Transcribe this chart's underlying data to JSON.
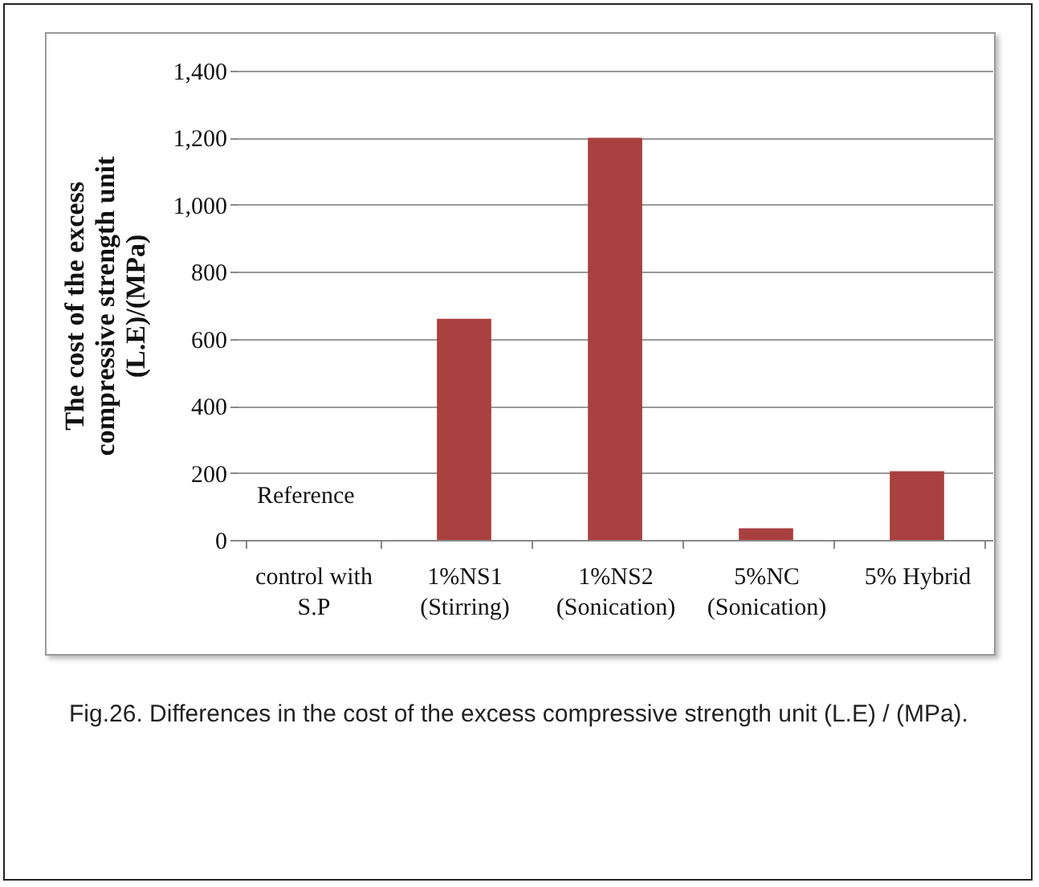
{
  "chart_data": {
    "type": "bar",
    "ylabel": "The cost of the excess\ncompressive strength unit\n(L.E)/(MPa)",
    "categories": [
      "control with\nS.P",
      "1%NS1\n(Stirring)",
      "1%NS2\n(Sonication)",
      "5%NC\n(Sonication)",
      "5% Hybrid"
    ],
    "values": [
      null,
      660,
      1200,
      35,
      205
    ],
    "color": "#a8403f",
    "ylim": [
      0,
      1400
    ],
    "yticks": [
      0,
      {
        "value": 200,
        "label": "200"
      },
      {
        "value": 400,
        "label": "400"
      },
      {
        "value": 600,
        "label": "600"
      },
      {
        "value": 800,
        "label": "800"
      },
      {
        "value": 1000,
        "label": "1,000"
      },
      {
        "value": 1200,
        "label": "1,200"
      },
      {
        "value": 1400,
        "label": "1,400"
      }
    ],
    "grid": "y",
    "annotations": [
      "Reference",
      "Fig.26. Differences in the cost of the excess compressive strength unit (L.E) / (MPa)."
    ]
  }
}
